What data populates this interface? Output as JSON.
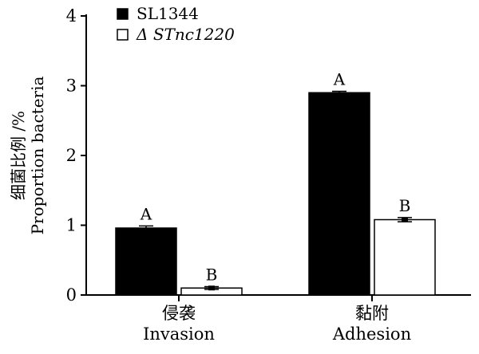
{
  "chart_data": {
    "type": "bar",
    "title": "",
    "ylabel": [
      "细菌比例 /%",
      "Proportion bacteria"
    ],
    "xlabel": "",
    "ylim": [
      0,
      4
    ],
    "yticks": [
      0,
      1,
      2,
      3,
      4
    ],
    "categories": [
      {
        "cn": "侵袭",
        "en": "Invasion"
      },
      {
        "cn": "黏附",
        "en": "Adhesion"
      }
    ],
    "legend_position": "top-left",
    "series": [
      {
        "name": "SL1344",
        "name_prefix": "",
        "color": "#000000",
        "values": [
          0.96,
          2.9
        ],
        "errors": [
          0.03,
          0.02
        ],
        "significance": [
          "A",
          "A"
        ]
      },
      {
        "name": "STnc1220",
        "name_prefix": "Δ ",
        "color": "#ffffff",
        "values": [
          0.1,
          1.08
        ],
        "errors": [
          0.02,
          0.03
        ],
        "significance": [
          "B",
          "B"
        ]
      }
    ]
  }
}
